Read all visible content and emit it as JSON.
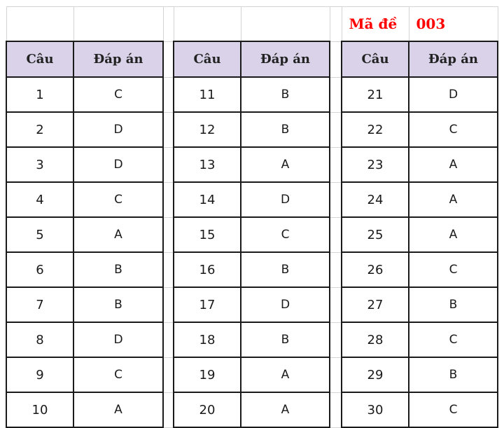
{
  "exam_code_label": "Mã đề",
  "exam_code_value": "003",
  "headers": {
    "question": "Câu",
    "answer": "Đáp án"
  },
  "header_bg": "#d9d2e9",
  "code_color": "#ff0000",
  "blocks": [
    {
      "rows": [
        [
          "1",
          "C"
        ],
        [
          "2",
          "D"
        ],
        [
          "3",
          "D"
        ],
        [
          "4",
          "C"
        ],
        [
          "5",
          "A"
        ],
        [
          "6",
          "B"
        ],
        [
          "7",
          "B"
        ],
        [
          "8",
          "D"
        ],
        [
          "9",
          "C"
        ],
        [
          "10",
          "A"
        ]
      ]
    },
    {
      "rows": [
        [
          "11",
          "B"
        ],
        [
          "12",
          "B"
        ],
        [
          "13",
          "A"
        ],
        [
          "14",
          "D"
        ],
        [
          "15",
          "C"
        ],
        [
          "16",
          "B"
        ],
        [
          "17",
          "D"
        ],
        [
          "18",
          "B"
        ],
        [
          "19",
          "A"
        ],
        [
          "20",
          "A"
        ]
      ]
    },
    {
      "rows": [
        [
          "21",
          "D"
        ],
        [
          "22",
          "C"
        ],
        [
          "23",
          "A"
        ],
        [
          "24",
          "A"
        ],
        [
          "25",
          "A"
        ],
        [
          "26",
          "C"
        ],
        [
          "27",
          "B"
        ],
        [
          "28",
          "C"
        ],
        [
          "29",
          "B"
        ],
        [
          "30",
          "C"
        ]
      ]
    }
  ]
}
